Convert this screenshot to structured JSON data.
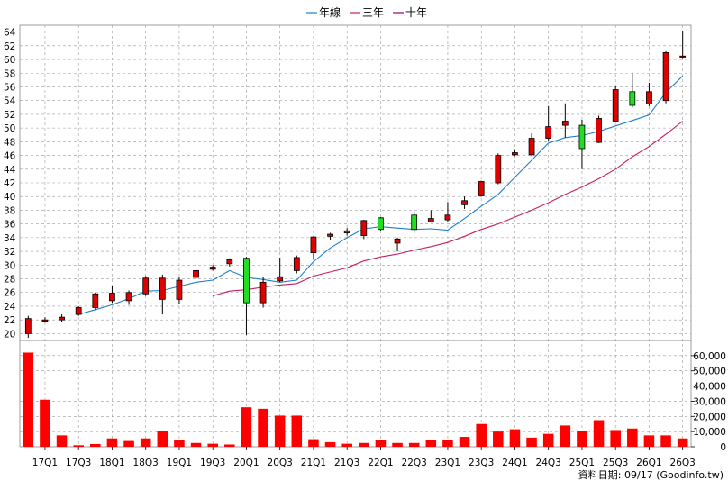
{
  "chart_data": {
    "type": "candlestick",
    "legend": [
      {
        "name": "年線",
        "color": "#1e7fd0"
      },
      {
        "name": "三年",
        "color": "#c81e64"
      },
      {
        "name": "十年",
        "color": "#a0006e"
      }
    ],
    "price_ylim": [
      19,
      65
    ],
    "price_ticks": [
      20,
      22,
      24,
      26,
      28,
      30,
      32,
      34,
      36,
      38,
      40,
      42,
      44,
      46,
      48,
      50,
      52,
      54,
      56,
      58,
      60,
      62,
      64
    ],
    "volume_ylim": [
      0,
      70000
    ],
    "volume_ticks": [
      "0",
      "10,000",
      "20,000",
      "30,000",
      "40,000",
      "50,000",
      "60,000"
    ],
    "volume_tick_values": [
      0,
      10000,
      20000,
      30000,
      40000,
      50000,
      60000
    ],
    "x_tick_labels": [
      "17Q1",
      "17Q3",
      "18Q1",
      "18Q3",
      "19Q1",
      "19Q3",
      "20Q1",
      "20Q3",
      "21Q1",
      "21Q3",
      "22Q1",
      "22Q3",
      "23Q1",
      "23Q3",
      "24Q1",
      "24Q3",
      "25Q1",
      "25Q3",
      "26Q1",
      "26Q3"
    ],
    "quarters": [
      "16Q4",
      "17Q1",
      "17Q2",
      "17Q3",
      "17Q4",
      "18Q1",
      "18Q2",
      "18Q3",
      "18Q4",
      "19Q1",
      "19Q2",
      "19Q3",
      "19Q4",
      "20Q1",
      "20Q2",
      "20Q3",
      "20Q4",
      "21Q1",
      "21Q2",
      "21Q3",
      "21Q4",
      "22Q1",
      "22Q2",
      "22Q3",
      "22Q4",
      "23Q1",
      "23Q2",
      "23Q3",
      "23Q4",
      "24Q1",
      "24Q2",
      "24Q3",
      "24Q4",
      "25Q1",
      "25Q2",
      "25Q3",
      "25Q4",
      "26Q1",
      "26Q2",
      "26Q3"
    ],
    "open": [
      20,
      21.8,
      22,
      22.8,
      23.8,
      24.8,
      24.8,
      25.8,
      25,
      25,
      28.2,
      29.4,
      30.2,
      31,
      24.5,
      27.7,
      29.2,
      31.8,
      34.2,
      34.7,
      34.3,
      36.9,
      33.2,
      37.3,
      36.3,
      36.6,
      38.8,
      40.1,
      42,
      46.1,
      46.1,
      48.5,
      50.4,
      50.4,
      47.9,
      51,
      55.3,
      53.5,
      54,
      60.5
    ],
    "close": [
      22.2,
      22,
      22.4,
      23.8,
      25.8,
      25.9,
      26,
      28.1,
      28.1,
      27.8,
      29.2,
      29.7,
      30.8,
      24.5,
      27.5,
      28.3,
      31.1,
      34.1,
      34.5,
      35,
      36.5,
      35.2,
      33.8,
      35.2,
      36.8,
      37.3,
      39.4,
      42.2,
      46,
      46.4,
      48.5,
      50.2,
      51,
      47,
      51.4,
      55.6,
      53.3,
      55.3,
      61,
      60.5
    ],
    "high": [
      22.6,
      22.4,
      22.8,
      24,
      26,
      27,
      26.3,
      28.4,
      28.6,
      28.2,
      29.5,
      30,
      31,
      31.2,
      28.2,
      31.1,
      31.4,
      34.2,
      34.7,
      35.4,
      36.6,
      37,
      34,
      37.8,
      38,
      39.2,
      40,
      42.3,
      46.3,
      46.9,
      49.2,
      53.2,
      53.6,
      51.2,
      51.8,
      56.2,
      58,
      56.6,
      61.2,
      64.2
    ],
    "low": [
      19.4,
      21.6,
      21.7,
      22.6,
      23.5,
      24.5,
      24.2,
      25.5,
      22.8,
      24.3,
      28,
      29.2,
      29.8,
      19.8,
      23.8,
      27.5,
      28.8,
      30.8,
      33.7,
      34.3,
      33.8,
      35,
      32,
      34.7,
      36.2,
      36.3,
      38.2,
      40,
      41.8,
      45.9,
      45.9,
      48,
      48.6,
      44,
      47.8,
      50.9,
      53,
      53.2,
      53.6,
      60.2
    ],
    "volume": [
      62000,
      31000,
      7500,
      1000,
      1800,
      5500,
      3800,
      5500,
      10500,
      4500,
      2500,
      2000,
      1500,
      26000,
      25000,
      20500,
      20500,
      5000,
      3000,
      2000,
      2500,
      4500,
      2500,
      2500,
      4500,
      4500,
      6500,
      15000,
      10000,
      11500,
      6000,
      8500,
      14000,
      10500,
      17500,
      11000,
      12000,
      7500,
      7500,
      5500
    ],
    "year_line": [
      null,
      null,
      null,
      22.8,
      23.5,
      24.2,
      25.1,
      26.2,
      26.3,
      26.9,
      27.5,
      27.8,
      29.2,
      28.2,
      27.9,
      27.5,
      27.8,
      30.5,
      32.5,
      34,
      35.3,
      35.6,
      35.4,
      35.2,
      35.3,
      35.1,
      36.8,
      38.6,
      40.3,
      42.8,
      45.3,
      47.8,
      48.6,
      48.9,
      49.5,
      50.3,
      51.1,
      51.9,
      55.2,
      57.6
    ],
    "three_year_line": [
      null,
      null,
      null,
      null,
      null,
      null,
      null,
      null,
      null,
      null,
      null,
      25.5,
      26.2,
      26.4,
      26.8,
      27.1,
      27.3,
      28.4,
      29,
      29.6,
      30.6,
      31.2,
      31.6,
      32.2,
      32.7,
      33.3,
      34.2,
      35.2,
      36,
      37,
      38,
      39.1,
      40.3,
      41.4,
      42.6,
      44,
      45.8,
      47.3,
      49.1,
      51
    ]
  },
  "footer": {
    "source": "資料日期: 09/17  (Goodinfo.tw)"
  }
}
